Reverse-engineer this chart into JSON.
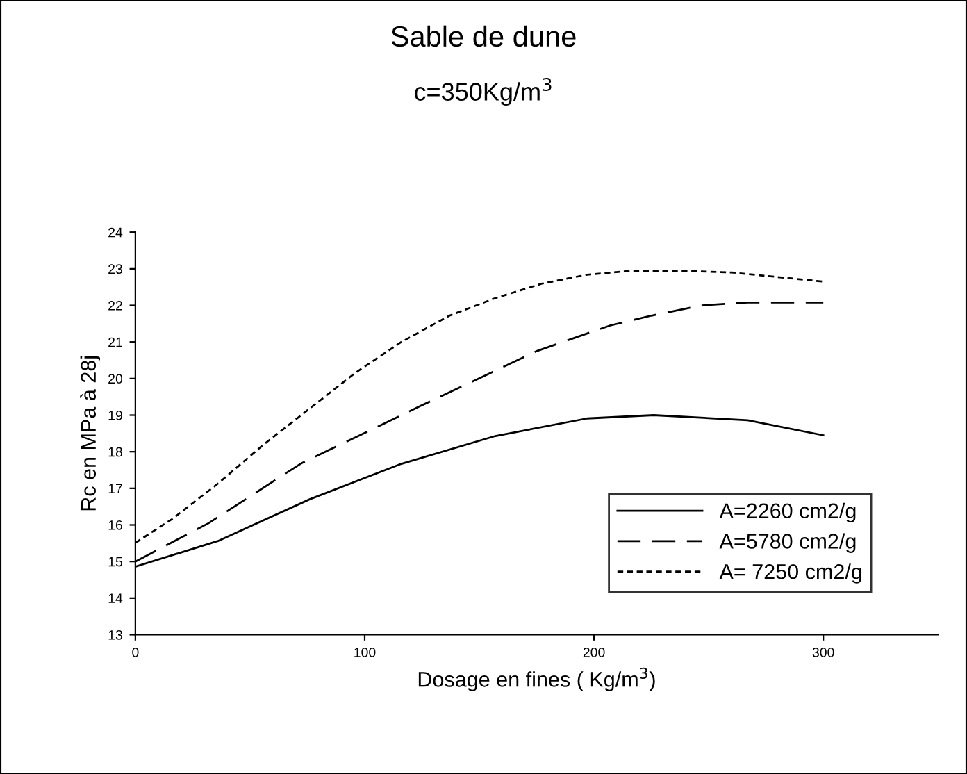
{
  "chart_data": {
    "type": "line",
    "title": "Sable de dune",
    "subtitle": "c=350Kg/m$^{3}$",
    "xlabel": "Dosage en fines ( Kg/m$^{3}$)",
    "ylabel": "Rc en MPa à 28j",
    "xlim": [
      0,
      350
    ],
    "xticks": [
      0,
      100,
      200,
      300
    ],
    "ylim": [
      13,
      24
    ],
    "yticks": [
      13,
      14,
      15,
      16,
      17,
      18,
      19,
      20,
      21,
      22,
      23,
      24
    ],
    "grid": false,
    "legend": "bottom right",
    "marker": "none",
    "series": [
      {
        "name": "A=2260 cm2/g",
        "color": "#000000",
        "line_style": "solid",
        "x": [
          0,
          36,
          76,
          116,
          157,
          197,
          226,
          267,
          300
        ],
        "values": [
          14.86,
          15.56,
          16.7,
          17.67,
          18.43,
          18.91,
          19.0,
          18.86,
          18.45
        ]
      },
      {
        "name": "A=5780 cm2/g",
        "color": "#000000",
        "line_style": "dashed",
        "x": [
          0,
          32,
          72,
          124,
          175,
          207,
          225,
          247,
          267,
          300
        ],
        "values": [
          15.0,
          16.05,
          17.67,
          19.24,
          20.75,
          21.45,
          21.72,
          22.0,
          22.08,
          22.08
        ]
      },
      {
        "name": "A= 7250 cm2/g",
        "color": "#000000",
        "line_style": "dotted",
        "x": [
          0,
          16,
          36,
          56,
          76,
          96,
          116,
          137,
          157,
          177,
          197,
          217,
          237,
          260,
          300
        ],
        "values": [
          15.51,
          16.16,
          17.13,
          18.2,
          19.18,
          20.16,
          21.0,
          21.72,
          22.2,
          22.59,
          22.84,
          22.95,
          22.95,
          22.9,
          22.65
        ]
      }
    ]
  }
}
